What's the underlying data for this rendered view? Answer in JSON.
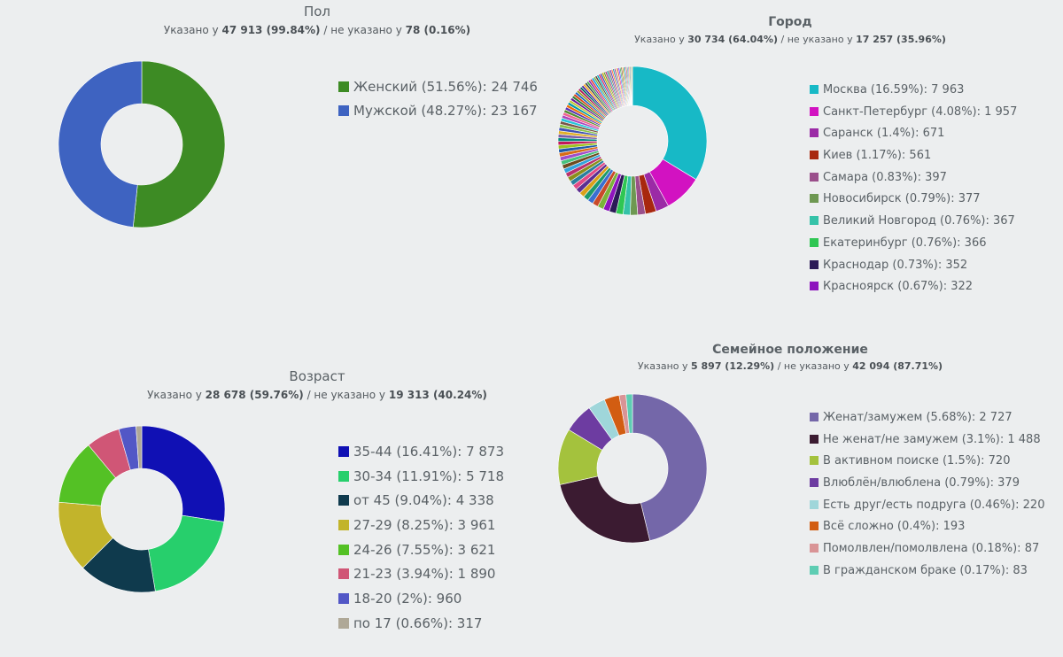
{
  "chart_data": [
    {
      "id": "gender",
      "type": "pie",
      "title": "Пол",
      "subtitle": {
        "prefix": "Указано у",
        "specified": "47 913 (99.84%)",
        "middle": "/ не указано у",
        "unspecified": "78 (0.16%)"
      },
      "slices": [
        {
          "label": "Женский",
          "percent": "51.56%",
          "value": 24746,
          "value_text": "24 746",
          "color": "#3d8b24"
        },
        {
          "label": "Мужской",
          "percent": "48.27%",
          "value": 23167,
          "value_text": "23 167",
          "color": "#3e63c1"
        }
      ],
      "unlisted_slices": [],
      "legend_position": "right"
    },
    {
      "id": "city",
      "type": "pie",
      "title": "Город",
      "subtitle": {
        "prefix": "Указано у",
        "specified": "30 734 (64.04%)",
        "middle": "/ не указано у",
        "unspecified": "17 257 (35.96%)"
      },
      "slices": [
        {
          "label": "Москва",
          "percent": "16.59%",
          "value": 7963,
          "value_text": "7 963",
          "color": "#17b9c6"
        },
        {
          "label": "Санкт-Петербург",
          "percent": "4.08%",
          "value": 1957,
          "value_text": "1 957",
          "color": "#d212c1"
        },
        {
          "label": "Саранск",
          "percent": "1.4%",
          "value": 671,
          "value_text": "671",
          "color": "#9b2aa6"
        },
        {
          "label": "Киев",
          "percent": "1.17%",
          "value": 561,
          "value_text": "561",
          "color": "#a8280f"
        },
        {
          "label": "Самара",
          "percent": "0.83%",
          "value": 397,
          "value_text": "397",
          "color": "#9a4f8b"
        },
        {
          "label": "Новосибирск",
          "percent": "0.79%",
          "value": 377,
          "value_text": "377",
          "color": "#6e9852"
        },
        {
          "label": "Великий Новгород",
          "percent": "0.76%",
          "value": 367,
          "value_text": "367",
          "color": "#35c2a8"
        },
        {
          "label": "Екатеринбург",
          "percent": "0.76%",
          "value": 366,
          "value_text": "366",
          "color": "#2fc653"
        },
        {
          "label": "Краснодар",
          "percent": "0.73%",
          "value": 352,
          "value_text": "352",
          "color": "#2b1a57"
        },
        {
          "label": "Красноярск",
          "percent": "0.67%",
          "value": 322,
          "value_text": "322",
          "color": "#8d14bd"
        }
      ],
      "unlisted_slices": [
        {
          "value": 310,
          "color": "#7ab33a"
        },
        {
          "value": 300,
          "color": "#c94a2a"
        },
        {
          "value": 290,
          "color": "#3b6fd1"
        },
        {
          "value": 280,
          "color": "#1e9a6b"
        },
        {
          "value": 270,
          "color": "#d9a11a"
        },
        {
          "value": 262,
          "color": "#5c2f91"
        },
        {
          "value": 255,
          "color": "#e24a86"
        },
        {
          "value": 248,
          "color": "#2a7f9e"
        },
        {
          "value": 241,
          "color": "#8a8f1c"
        },
        {
          "value": 234,
          "color": "#b8326e"
        },
        {
          "value": 228,
          "color": "#33a3dc"
        },
        {
          "value": 222,
          "color": "#6d4c1f"
        },
        {
          "value": 216,
          "color": "#47c27d"
        },
        {
          "value": 210,
          "color": "#a04dc9"
        },
        {
          "value": 205,
          "color": "#d96c17"
        },
        {
          "value": 200,
          "color": "#1f5ba8"
        },
        {
          "value": 195,
          "color": "#9cc21f"
        },
        {
          "value": 190,
          "color": "#c2185b"
        },
        {
          "value": 185,
          "color": "#00897b"
        },
        {
          "value": 180,
          "color": "#7b5ea7"
        },
        {
          "value": 176,
          "color": "#e0b02a"
        },
        {
          "value": 172,
          "color": "#3f51b5"
        },
        {
          "value": 168,
          "color": "#8bc34a"
        },
        {
          "value": 164,
          "color": "#795548"
        },
        {
          "value": 160,
          "color": "#26c6da"
        },
        {
          "value": 156,
          "color": "#ab47bc"
        },
        {
          "value": 152,
          "color": "#f06292"
        },
        {
          "value": 148,
          "color": "#558b2f"
        },
        {
          "value": 145,
          "color": "#5e35b1"
        },
        {
          "value": 142,
          "color": "#ef6c00"
        },
        {
          "value": 139,
          "color": "#0097a7"
        },
        {
          "value": 136,
          "color": "#c0ca33"
        },
        {
          "value": 133,
          "color": "#6a1b9a"
        },
        {
          "value": 130,
          "color": "#2e7d32"
        },
        {
          "value": 127,
          "color": "#d84315"
        },
        {
          "value": 124,
          "color": "#1565c0"
        },
        {
          "value": 121,
          "color": "#9e9d24"
        },
        {
          "value": 118,
          "color": "#ad1457"
        },
        {
          "value": 116,
          "color": "#00695c"
        },
        {
          "value": 114,
          "color": "#4527a0"
        },
        {
          "value": 112,
          "color": "#f9a825"
        },
        {
          "value": 110,
          "color": "#37474f"
        },
        {
          "value": 108,
          "color": "#43a047"
        },
        {
          "value": 106,
          "color": "#8e24aa"
        },
        {
          "value": 104,
          "color": "#e53935"
        },
        {
          "value": 102,
          "color": "#039be5"
        },
        {
          "value": 100,
          "color": "#7cb342"
        },
        {
          "value": 98,
          "color": "#5d4037"
        },
        {
          "value": 96,
          "color": "#00acc1"
        },
        {
          "value": 94,
          "color": "#d81b60"
        },
        {
          "value": 92,
          "color": "#3949ab"
        },
        {
          "value": 90,
          "color": "#c6a700"
        },
        {
          "value": 88,
          "color": "#6d9e2e"
        },
        {
          "value": 86,
          "color": "#b0307a"
        },
        {
          "value": 84,
          "color": "#2196a3"
        },
        {
          "value": 82,
          "color": "#8d6e63"
        },
        {
          "value": 80,
          "color": "#673ab7"
        },
        {
          "value": 78,
          "color": "#ff7043"
        },
        {
          "value": 76,
          "color": "#26a69a"
        },
        {
          "value": 74,
          "color": "#9c27b0"
        },
        {
          "value": 72,
          "color": "#cddc39"
        },
        {
          "value": 70,
          "color": "#e91e63"
        },
        {
          "value": 68,
          "color": "#3d5afe"
        },
        {
          "value": 66,
          "color": "#4caf50"
        },
        {
          "value": 64,
          "color": "#795548"
        },
        {
          "value": 62,
          "color": "#ff9800"
        },
        {
          "value": 60,
          "color": "#009688"
        },
        {
          "value": 58,
          "color": "#5c6bc0"
        },
        {
          "value": 56,
          "color": "#c0392b"
        },
        {
          "value": 54,
          "color": "#16a085"
        },
        {
          "value": 52,
          "color": "#8e44ad"
        },
        {
          "value": 50,
          "color": "#d4ac0d"
        },
        {
          "value": 48,
          "color": "#2c3e50"
        },
        {
          "value": 46,
          "color": "#27ae60"
        },
        {
          "value": 44,
          "color": "#e67e22"
        }
      ],
      "legend_position": "right"
    },
    {
      "id": "age",
      "type": "pie",
      "title": "Возраст",
      "subtitle": {
        "prefix": "Указано у",
        "specified": "28 678 (59.76%)",
        "middle": "/ не указано у",
        "unspecified": "19 313 (40.24%)"
      },
      "slices": [
        {
          "label": "35-44",
          "percent": "16.41%",
          "value": 7873,
          "value_text": "7 873",
          "color": "#1010b4"
        },
        {
          "label": "30-34",
          "percent": "11.91%",
          "value": 5718,
          "value_text": "5 718",
          "color": "#27cf6c"
        },
        {
          "label": "от 45",
          "percent": "9.04%",
          "value": 4338,
          "value_text": "4 338",
          "color": "#0f3a4d"
        },
        {
          "label": "27-29",
          "percent": "8.25%",
          "value": 3961,
          "value_text": "3 961",
          "color": "#c2b42b"
        },
        {
          "label": "24-26",
          "percent": "7.55%",
          "value": 3621,
          "value_text": "3 621",
          "color": "#54c125"
        },
        {
          "label": "21-23",
          "percent": "3.94%",
          "value": 1890,
          "value_text": "1 890",
          "color": "#d05676"
        },
        {
          "label": "18-20",
          "percent": "2%",
          "value": 960,
          "value_text": "960",
          "color": "#5257c6"
        },
        {
          "label": "по 17",
          "percent": "0.66%",
          "value": 317,
          "value_text": "317",
          "color": "#afa897"
        }
      ],
      "unlisted_slices": [],
      "legend_position": "right"
    },
    {
      "id": "family",
      "type": "pie",
      "title": "Семейное положение",
      "subtitle": {
        "prefix": "Указано у",
        "specified": "5 897 (12.29%)",
        "middle": "/ не указано у",
        "unspecified": "42 094 (87.71%)"
      },
      "slices": [
        {
          "label": "Женат/замужем",
          "percent": "5.68%",
          "value": 2727,
          "value_text": "2 727",
          "color": "#7467a9"
        },
        {
          "label": "Не женат/не замужем",
          "percent": "3.1%",
          "value": 1488,
          "value_text": "1 488",
          "color": "#3b1b31"
        },
        {
          "label": "В активном поиске",
          "percent": "1.5%",
          "value": 720,
          "value_text": "720",
          "color": "#a4c23d"
        },
        {
          "label": "Влюблён/влюблена",
          "percent": "0.79%",
          "value": 379,
          "value_text": "379",
          "color": "#6d3ca1"
        },
        {
          "label": "Есть друг/есть подруга",
          "percent": "0.46%",
          "value": 220,
          "value_text": "220",
          "color": "#9fd6da"
        },
        {
          "label": "Всё сложно",
          "percent": "0.4%",
          "value": 193,
          "value_text": "193",
          "color": "#d25d12"
        },
        {
          "label": "Помолвлен/помолвлена",
          "percent": "0.18%",
          "value": 87,
          "value_text": "87",
          "color": "#d99496"
        },
        {
          "label": "В гражданском браке",
          "percent": "0.17%",
          "value": 83,
          "value_text": "83",
          "color": "#5ecdb3"
        }
      ],
      "unlisted_slices": [],
      "legend_position": "right"
    }
  ]
}
